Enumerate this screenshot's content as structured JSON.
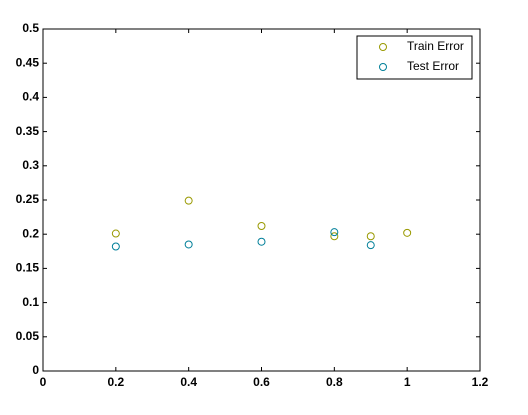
{
  "chart_data": {
    "type": "scatter",
    "title": "",
    "xlabel": "",
    "ylabel": "",
    "xlim": [
      0,
      1.2
    ],
    "ylim": [
      0,
      0.5
    ],
    "xticks": [
      0,
      0.2,
      0.4,
      0.6,
      0.8,
      1,
      1.2
    ],
    "xtick_labels": [
      "0",
      "0.2",
      "0.4",
      "0.6",
      "0.8",
      "1",
      "1.2"
    ],
    "yticks": [
      0,
      0.05,
      0.1,
      0.15,
      0.2,
      0.25,
      0.3,
      0.35,
      0.4,
      0.45,
      0.5
    ],
    "ytick_labels": [
      "0",
      "0.05",
      "0.1",
      "0.15",
      "0.2",
      "0.25",
      "0.3",
      "0.35",
      "0.4",
      "0.45",
      "0.5"
    ],
    "grid": false,
    "legend_position": "top-right",
    "series": [
      {
        "name": "Train Error",
        "color": "#999900",
        "marker": "circle-open",
        "x": [
          0.2,
          0.4,
          0.6,
          0.8,
          0.9,
          1.0
        ],
        "y": [
          0.201,
          0.249,
          0.212,
          0.197,
          0.197,
          0.202
        ]
      },
      {
        "name": "Test Error",
        "color": "#007f99",
        "marker": "circle-open",
        "x": [
          0.2,
          0.4,
          0.6,
          0.8,
          0.9
        ],
        "y": [
          0.182,
          0.185,
          0.189,
          0.203,
          0.184
        ]
      }
    ]
  }
}
